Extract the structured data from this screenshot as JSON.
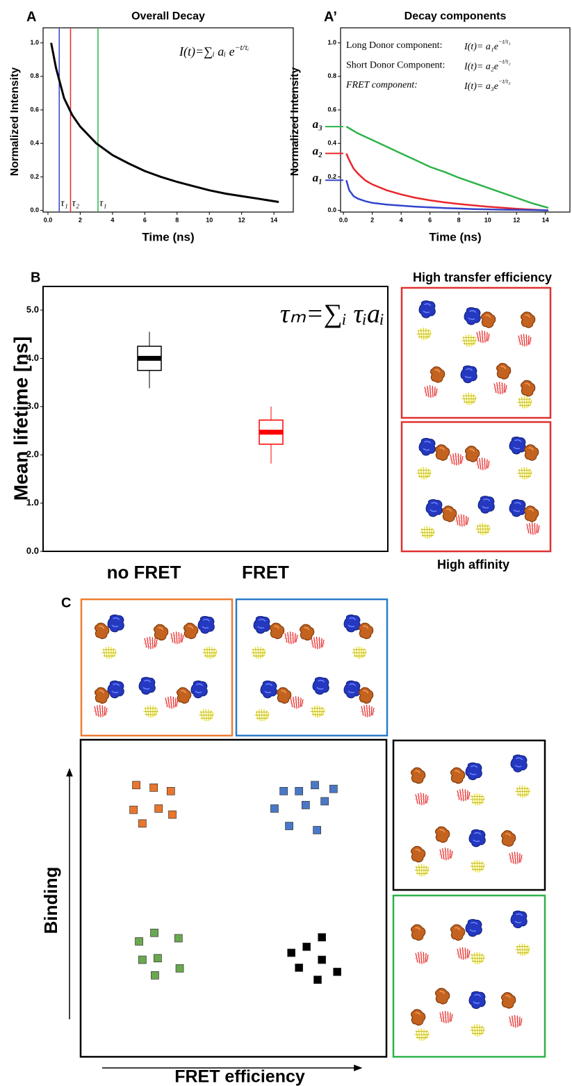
{
  "chart_data": [
    {
      "type": "line",
      "label": "A",
      "title": "Overall Decay",
      "xlabel": "Time (ns)",
      "ylabel": "Normalized Intensity",
      "x": [
        0.2,
        0.5,
        1,
        1.5,
        2,
        3,
        4,
        5,
        6,
        7,
        8,
        9,
        10,
        11,
        12,
        13,
        14.3
      ],
      "series": [
        {
          "color": "#000000",
          "values": [
            1.0,
            0.85,
            0.67,
            0.57,
            0.5,
            0.4,
            0.33,
            0.28,
            0.235,
            0.2,
            0.17,
            0.145,
            0.12,
            0.1,
            0.085,
            0.07,
            0.05
          ]
        }
      ],
      "xlim": [
        -0.3,
        15.2
      ],
      "ylim": [
        -0.01,
        1.09
      ],
      "xticks": [
        {
          "value": 0,
          "label": "0.0"
        },
        2,
        4,
        6,
        8,
        10,
        12,
        14
      ],
      "yticks": [
        {
          "value": 0,
          "label": "0.0"
        },
        0.2,
        0.4,
        0.6,
        0.8,
        {
          "value": 1,
          "label": "1.0"
        }
      ],
      "vlines": [
        {
          "value": 0.7,
          "label": "τ₁",
          "color": "#3344cc"
        },
        {
          "value": 1.4,
          "label": "τ₂",
          "color": "#e8262b"
        },
        {
          "value": 3.1,
          "label": "τ₁",
          "color": "#2cb34a"
        }
      ],
      "formula": {
        "base": "I(t)=∑ᵢ aᵢ e",
        "sup": "−t/τᵢ"
      }
    },
    {
      "type": "line",
      "label": "A’",
      "title": "Decay components",
      "xlabel": "Time (ns)",
      "ylabel": "Normalized Intensity",
      "x": [
        0.2,
        0.4,
        0.7,
        1,
        1.5,
        2,
        3,
        4,
        5,
        6,
        7,
        8,
        9,
        10,
        11,
        12,
        13,
        14.2
      ],
      "series": [
        {
          "name": "Long Donor component:",
          "color": "#2cb34a",
          "formula": {
            "base": "I(t)= a₁e",
            "sup": "−t/τ₁"
          },
          "values": [
            0.5,
            0.49,
            0.475,
            0.46,
            0.44,
            0.42,
            0.38,
            0.34,
            0.3,
            0.26,
            0.23,
            0.195,
            0.165,
            0.135,
            0.105,
            0.075,
            0.045,
            0.015
          ]
        },
        {
          "name": "Short Donor Component:",
          "color": "#e8262b",
          "formula": {
            "base": "I(t)= a₂e",
            "sup": "−t/τ₂"
          },
          "values": [
            0.34,
            0.3,
            0.25,
            0.22,
            0.18,
            0.155,
            0.12,
            0.095,
            0.075,
            0.06,
            0.048,
            0.038,
            0.03,
            0.022,
            0.016,
            0.01,
            0.005,
            0.0
          ]
        },
        {
          "name": "FRET component:",
          "color": "#3344cc",
          "italic": true,
          "formula": {
            "base": "I(t)= a₃e",
            "sup": "−t/τ₃"
          },
          "values": [
            0.18,
            0.12,
            0.085,
            0.07,
            0.055,
            0.045,
            0.035,
            0.028,
            0.022,
            0.018,
            0.014,
            0.011,
            0.008,
            0.006,
            0.004,
            0.003,
            0.002,
            0.0
          ]
        }
      ],
      "xlim": [
        -0.2,
        15.7
      ],
      "ylim": [
        -0.01,
        1.09
      ],
      "xticks": [
        {
          "value": 0,
          "label": "0.0"
        },
        2,
        4,
        6,
        8,
        10,
        12,
        14
      ],
      "yticks": [
        {
          "value": 0,
          "label": "0.0"
        },
        0.2,
        0.4,
        0.6,
        0.8,
        {
          "value": 1,
          "label": "1.0"
        }
      ],
      "a_levels": [
        {
          "value": 0.5,
          "label": "a₃",
          "color": "#2cb34a"
        },
        {
          "value": 0.34,
          "label": "a₂",
          "color": "#e8262b"
        },
        {
          "value": 0.18,
          "label": "a₁",
          "color": "#3344cc"
        }
      ]
    },
    {
      "type": "box",
      "label": "B",
      "ylabel": "Mean lifetime [ns]",
      "categories": [
        "no FRET",
        "FRET"
      ],
      "boxes": [
        {
          "color": "#000000",
          "whisker_low": 3.38,
          "q1": 3.75,
          "median": 4.0,
          "q3": 4.25,
          "whisker_high": 4.55
        },
        {
          "color": "#ff0000",
          "whisker_low": 1.82,
          "q1": 2.22,
          "median": 2.47,
          "q3": 2.72,
          "whisker_high": 3.0
        }
      ],
      "ylim": [
        0,
        5.49
      ],
      "yticks": [
        {
          "value": 0,
          "label": "0.0"
        },
        {
          "value": 1,
          "label": "1.0"
        },
        {
          "value": 2,
          "label": "2.0"
        },
        {
          "value": 3,
          "label": "3.0"
        },
        {
          "value": 4,
          "label": "4.0"
        },
        {
          "value": 5,
          "label": "5.0"
        }
      ],
      "formula": "τₘ=∑ᵢ τᵢaᵢ"
    },
    {
      "type": "scatter",
      "label": "C",
      "xlabel": "FRET efficiency",
      "ylabel": "Binding",
      "xlim": [
        0,
        100
      ],
      "ylim": [
        0,
        100
      ],
      "series": [
        {
          "color": "#e8762c",
          "x": [
            18.2,
            23.9,
            29.5,
            25.5,
            17.3,
            30.0,
            20.2
          ],
          "y": [
            85.7,
            84.9,
            83.8,
            78.3,
            77.9,
            76.4,
            73.6
          ]
        },
        {
          "color": "#4a78c8",
          "x": [
            66.4,
            71.4,
            76.6,
            82.7,
            63.4,
            73.6,
            79.8,
            68.2,
            77.3
          ],
          "y": [
            83.8,
            83.8,
            85.7,
            84.5,
            78.3,
            79.4,
            80.6,
            72.8,
            71.5
          ]
        },
        {
          "color": "#6aa84f",
          "x": [
            24.1,
            19.1,
            32.0,
            20.2,
            25.2,
            32.4,
            24.3
          ],
          "y": [
            39.1,
            36.4,
            37.4,
            30.6,
            31.1,
            27.9,
            25.7
          ]
        },
        {
          "color": "#000000",
          "x": [
            78.9,
            73.9,
            68.9,
            78.9,
            71.4,
            83.9,
            77.5
          ],
          "y": [
            37.7,
            34.7,
            32.8,
            30.6,
            28.1,
            26.8,
            24.3
          ]
        }
      ]
    }
  ],
  "illustrations": {
    "top_title": "High transfer efficiency",
    "bottom_title": "High affinity"
  }
}
